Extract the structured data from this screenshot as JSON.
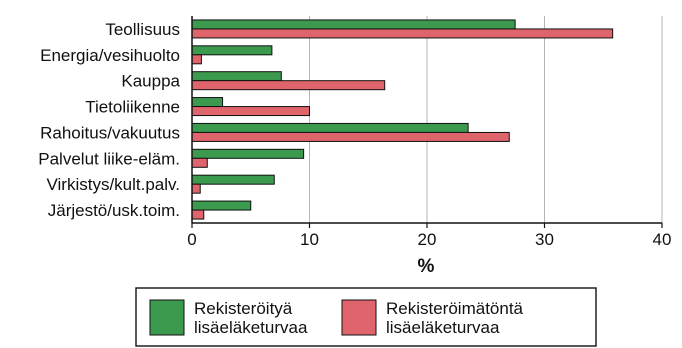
{
  "chart_data": {
    "type": "bar",
    "orientation": "horizontal",
    "categories": [
      "Teollisuus",
      "Energia/vesihuolto",
      "Kauppa",
      "Tietoliikenne",
      "Rahoitus/vakuutus",
      "Palvelut liike-eläm.",
      "Virkistys/kult.palv.",
      "Järjestö/usk.toim."
    ],
    "series": [
      {
        "name_lines": [
          "Rekisteröityä",
          "lisäeläketurvaa"
        ],
        "color": "#3c9a4f",
        "values": [
          27.5,
          6.8,
          7.6,
          2.6,
          23.5,
          9.5,
          7.0,
          5.0
        ]
      },
      {
        "name_lines": [
          "Rekisteröimätöntä",
          "lisäeläketurvaa"
        ],
        "color": "#e0646b",
        "values": [
          35.8,
          0.8,
          16.4,
          10.0,
          27.0,
          1.3,
          0.7,
          1.0
        ]
      }
    ],
    "xlabel": "%",
    "xlim": [
      0,
      40
    ],
    "xticks": [
      "0",
      "10",
      "20",
      "30",
      "40"
    ],
    "grid": "vertical",
    "legend": "bottom"
  }
}
